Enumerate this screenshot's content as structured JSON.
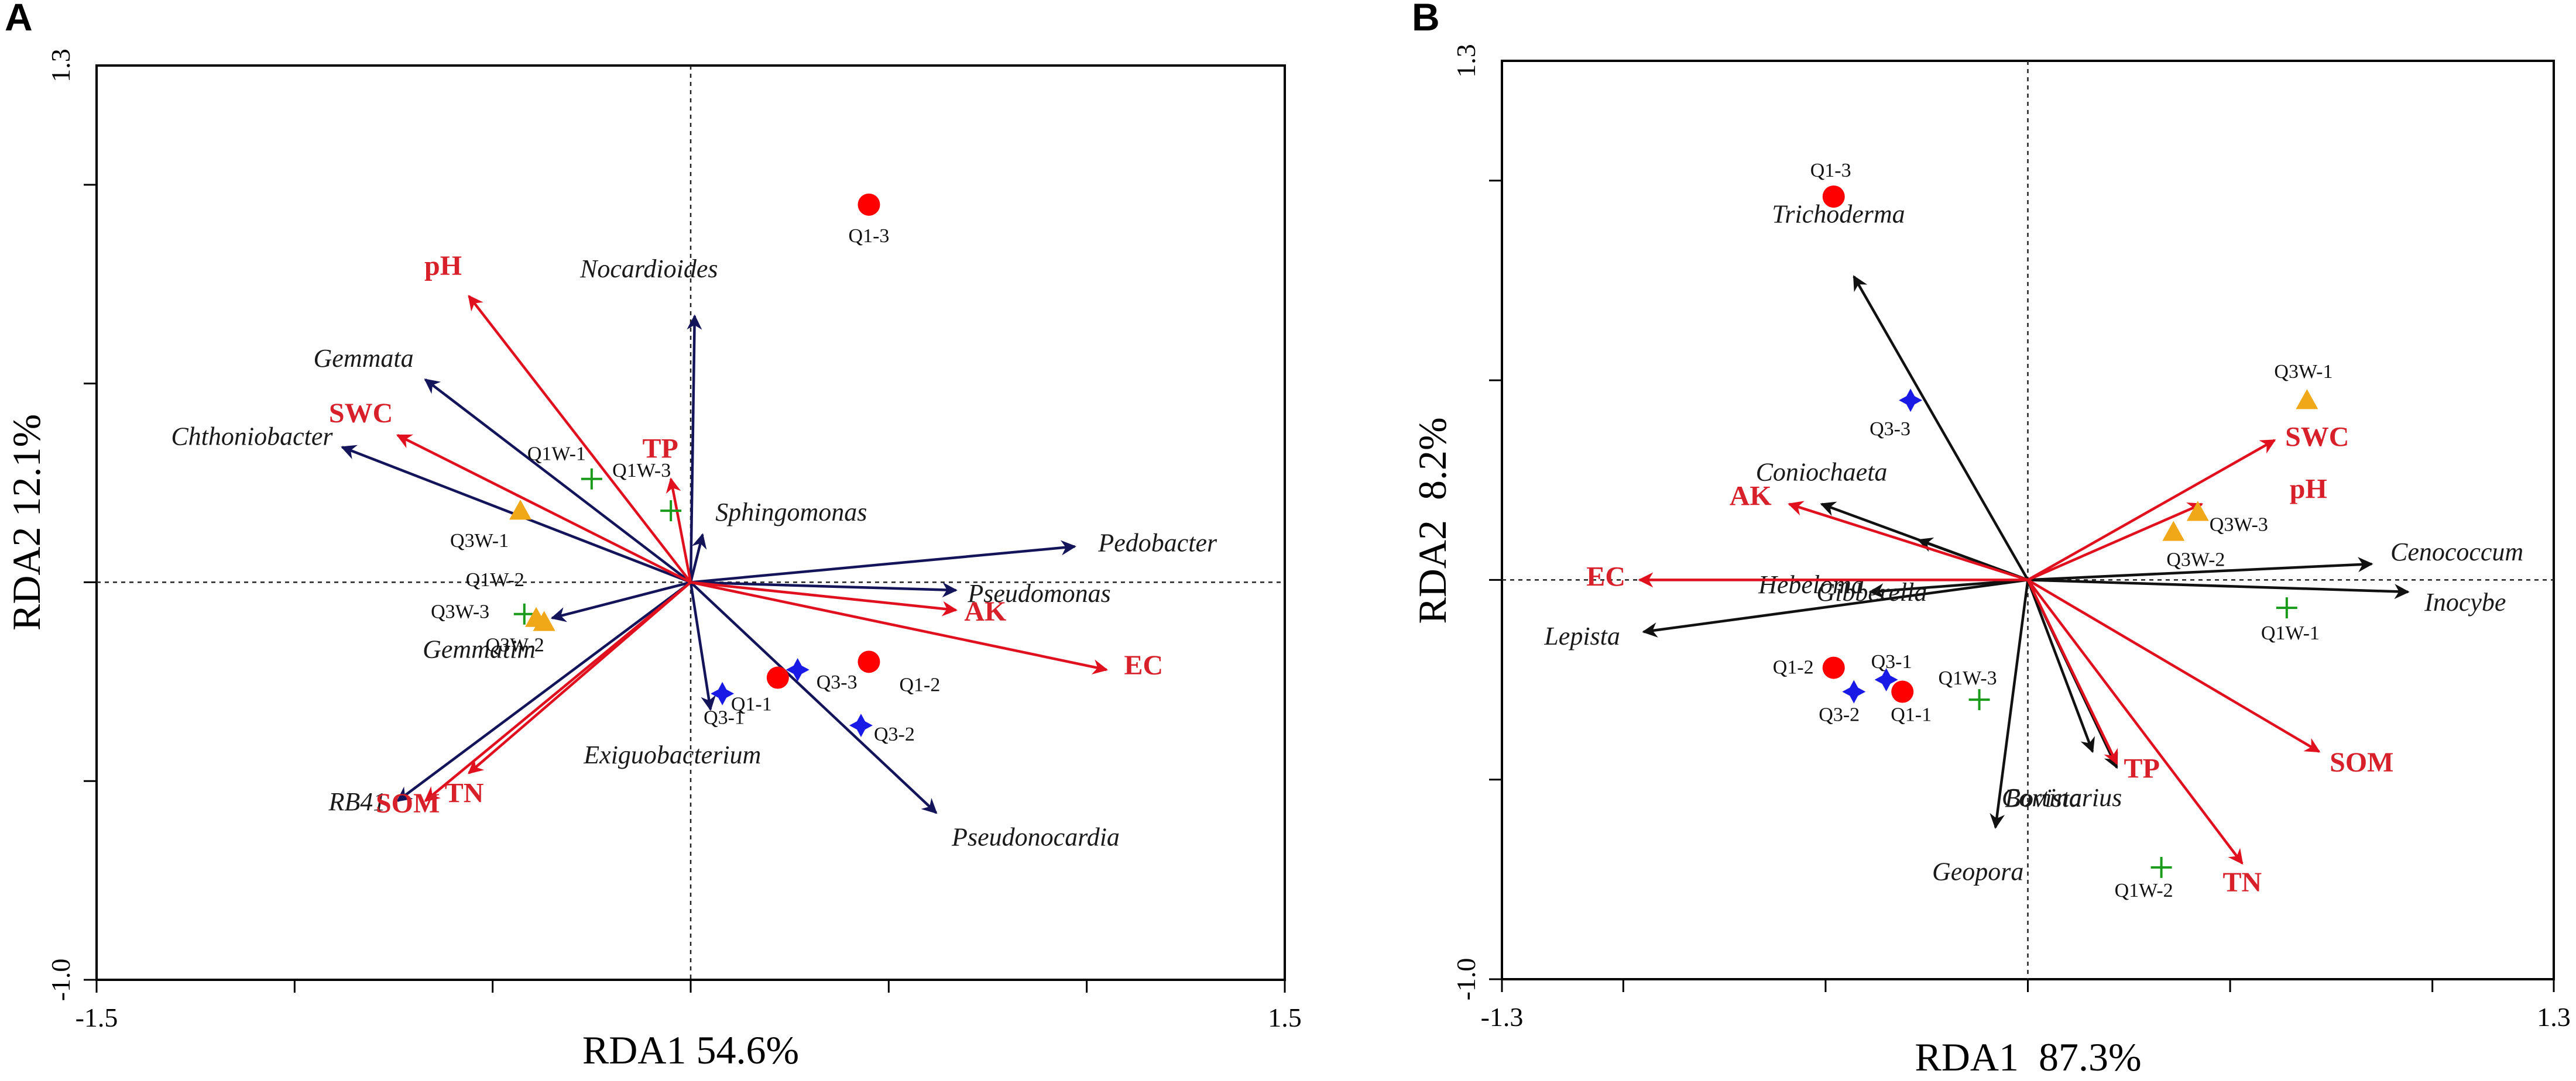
{
  "colors": {
    "env_arrow": "#e0101e",
    "env_label": "#d8202a",
    "species_arrow_a": "#14145a",
    "species_arrow_b": "#111111",
    "frame": "#000000",
    "q1": "#ff0000",
    "q3": "#1a1ae6",
    "q1w": "#1a9a1a",
    "q3w": "#f0a818"
  },
  "chart_data": [
    {
      "type": "scatter",
      "panel_label": "A",
      "xlabel": "RDA1 54.6%",
      "ylabel": "RDA2 12.1%",
      "xlim": [
        -1.5,
        1.5
      ],
      "ylim": [
        -1.0,
        1.3
      ],
      "xtick_labels": [
        "-1.5",
        "1.5"
      ],
      "ytick_labels": [
        "1.3",
        "-1.0"
      ],
      "ticks_x": [
        -1.5,
        -1.0,
        -0.5,
        0.0,
        0.5,
        1.0,
        1.5
      ],
      "ticks_y": [
        -1.0,
        -0.5,
        0.0,
        0.5,
        1.0
      ],
      "env_arrows": [
        {
          "name": "pH",
          "x": -0.56,
          "y": 0.72
        },
        {
          "name": "SWC",
          "x": -0.74,
          "y": 0.37
        },
        {
          "name": "TP",
          "x": -0.05,
          "y": 0.26
        },
        {
          "name": "AK",
          "x": 0.67,
          "y": -0.07
        },
        {
          "name": "EC",
          "x": 1.05,
          "y": -0.22
        },
        {
          "name": "SOM",
          "x": -0.67,
          "y": -0.55
        },
        {
          "name": "TN",
          "x": -0.56,
          "y": -0.48
        }
      ],
      "species_arrows": [
        {
          "name": "Gemmata",
          "x": -0.67,
          "y": 0.51
        },
        {
          "name": "Chthoniobacter",
          "x": -0.88,
          "y": 0.34
        },
        {
          "name": "Nocardioides",
          "x": 0.01,
          "y": 0.67
        },
        {
          "name": "Sphingomonas",
          "x": 0.03,
          "y": 0.12
        },
        {
          "name": "Pedobacter",
          "x": 0.97,
          "y": 0.09
        },
        {
          "name": "Pseudomonas",
          "x": 0.67,
          "y": -0.02
        },
        {
          "name": "Gemmatim",
          "x": -0.35,
          "y": -0.09
        },
        {
          "name": "RB41",
          "x": -0.74,
          "y": -0.55
        },
        {
          "name": "Exiguobacterium",
          "x": 0.05,
          "y": -0.32
        },
        {
          "name": "Pseudonocardia",
          "x": 0.62,
          "y": -0.58
        }
      ],
      "samples": [
        {
          "name": "Q1-3",
          "x": 0.45,
          "y": 0.95,
          "group": "Q1"
        },
        {
          "name": "Q1-2",
          "x": 0.45,
          "y": -0.2,
          "group": "Q1"
        },
        {
          "name": "Q1-1",
          "x": 0.22,
          "y": -0.24,
          "group": "Q1"
        },
        {
          "name": "Q3-3",
          "x": 0.27,
          "y": -0.22,
          "group": "Q3"
        },
        {
          "name": "Q3-1",
          "x": 0.08,
          "y": -0.28,
          "group": "Q3"
        },
        {
          "name": "Q3-2",
          "x": 0.43,
          "y": -0.36,
          "group": "Q3"
        },
        {
          "name": "Q1W-1",
          "x": -0.25,
          "y": 0.26,
          "group": "Q1W"
        },
        {
          "name": "Q1W-3",
          "x": -0.05,
          "y": 0.18,
          "group": "Q1W"
        },
        {
          "name": "Q1W-2",
          "x": -0.42,
          "y": -0.08,
          "group": "Q1W"
        },
        {
          "name": "Q3W-1",
          "x": -0.43,
          "y": 0.18,
          "group": "Q3W"
        },
        {
          "name": "Q3W-3",
          "x": -0.39,
          "y": -0.09,
          "group": "Q3W"
        },
        {
          "name": "Q3W-2",
          "x": -0.37,
          "y": -0.1,
          "group": "Q3W"
        }
      ]
    },
    {
      "type": "scatter",
      "panel_label": "B",
      "xlabel": "RDA1  87.3%",
      "ylabel": "RDA2  8.2%",
      "xlim": [
        -1.3,
        1.3
      ],
      "ylim": [
        -1.0,
        1.3
      ],
      "xtick_labels": [
        "-1.3",
        "1.3"
      ],
      "ytick_labels": [
        "1.3",
        "-1.0"
      ],
      "ticks_x": [
        -1.3,
        -1.0,
        -0.5,
        0.0,
        0.5,
        1.0,
        1.3
      ],
      "ticks_y": [
        -1.0,
        -0.5,
        0.0,
        0.5,
        1.0
      ],
      "env_arrows": [
        {
          "name": "SWC",
          "x": 0.61,
          "y": 0.35
        },
        {
          "name": "pH",
          "x": 0.43,
          "y": 0.19
        },
        {
          "name": "AK",
          "x": -0.59,
          "y": 0.19
        },
        {
          "name": "EC",
          "x": -0.96,
          "y": 0.0
        },
        {
          "name": "TP",
          "x": 0.22,
          "y": -0.46
        },
        {
          "name": "SOM",
          "x": 0.72,
          "y": -0.43
        },
        {
          "name": "TN",
          "x": 0.53,
          "y": -0.71
        }
      ],
      "species_arrows": [
        {
          "name": "Trichoderma",
          "x": -0.43,
          "y": 0.76
        },
        {
          "name": "Coniochaeta",
          "x": -0.51,
          "y": 0.19
        },
        {
          "name": "Hebeloma",
          "x": -0.39,
          "y": -0.03
        },
        {
          "name": "Lepista",
          "x": -0.95,
          "y": -0.13
        },
        {
          "name": "Gibberella",
          "x": -0.27,
          "y": 0.1
        },
        {
          "name": "Cenococcum",
          "x": 0.85,
          "y": 0.04
        },
        {
          "name": "Inocybe",
          "x": 0.94,
          "y": -0.03
        },
        {
          "name": "Bovista",
          "x": 0.16,
          "y": -0.43
        },
        {
          "name": "Cortinarius",
          "x": 0.22,
          "y": -0.47
        },
        {
          "name": "Geopora",
          "x": -0.08,
          "y": -0.62
        }
      ],
      "samples": [
        {
          "name": "Q1-3",
          "x": -0.48,
          "y": 0.96,
          "group": "Q1"
        },
        {
          "name": "Q1-2",
          "x": -0.48,
          "y": -0.22,
          "group": "Q1"
        },
        {
          "name": "Q1-1",
          "x": -0.31,
          "y": -0.28,
          "group": "Q1"
        },
        {
          "name": "Q3-3",
          "x": -0.29,
          "y": 0.45,
          "group": "Q3"
        },
        {
          "name": "Q3-1",
          "x": -0.35,
          "y": -0.25,
          "group": "Q3"
        },
        {
          "name": "Q3-2",
          "x": -0.43,
          "y": -0.28,
          "group": "Q3"
        },
        {
          "name": "Q3W-1",
          "x": 0.69,
          "y": 0.45,
          "group": "Q3W"
        },
        {
          "name": "Q3W-3",
          "x": 0.42,
          "y": 0.17,
          "group": "Q3W"
        },
        {
          "name": "Q3W-2",
          "x": 0.36,
          "y": 0.12,
          "group": "Q3W"
        },
        {
          "name": "Q1W-1",
          "x": 0.64,
          "y": -0.07,
          "group": "Q1W"
        },
        {
          "name": "Q1W-3",
          "x": -0.12,
          "y": -0.3,
          "group": "Q1W"
        },
        {
          "name": "Q1W-2",
          "x": 0.33,
          "y": -0.72,
          "group": "Q1W"
        }
      ]
    }
  ]
}
